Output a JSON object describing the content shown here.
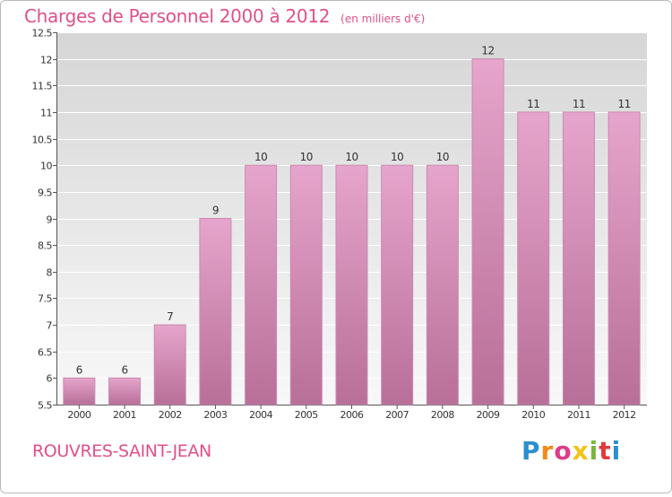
{
  "header": {
    "title": "Charges de Personnel 2000 à 2012",
    "subtitle": "(en milliers d'€)"
  },
  "footer": {
    "commune": "ROUVRES-SAINT-JEAN",
    "brand_letters": [
      "P",
      "r",
      "o",
      "x",
      "i",
      "t",
      "i"
    ],
    "brand_colors": [
      "#2b8fd0",
      "#f08a1c",
      "#e03a8a",
      "#f0c419",
      "#7cb342",
      "#e03a3a",
      "#2b8fd0"
    ]
  },
  "colors": {
    "accent": "#e0508a",
    "bar_top": "#e6a5cc",
    "bar_bottom": "#b86f98",
    "bar_edge": "#c98ab0",
    "plot_bg_top": "#d6d6d6",
    "plot_bg_bottom": "#f8f8f8"
  },
  "chart_data": {
    "type": "bar",
    "categories": [
      "2000",
      "2001",
      "2002",
      "2003",
      "2004",
      "2005",
      "2006",
      "2007",
      "2008",
      "2009",
      "2010",
      "2011",
      "2012"
    ],
    "values": [
      6,
      6,
      7,
      9,
      10,
      10,
      10,
      10,
      10,
      12,
      11,
      11,
      11
    ],
    "value_labels": [
      "6",
      "6",
      "7",
      "9",
      "10",
      "10",
      "10",
      "10",
      "10",
      "12",
      "11",
      "11",
      "11"
    ],
    "ylim": [
      5.5,
      12.5
    ],
    "yticks": [
      5.5,
      6,
      6.5,
      7,
      7.5,
      8,
      8.5,
      9,
      9.5,
      10,
      10.5,
      11,
      11.5,
      12,
      12.5
    ],
    "ytick_labels": [
      "5.5",
      "6",
      "6.5",
      "7",
      "7.5",
      "8",
      "8.5",
      "9",
      "9.5",
      "10",
      "10.5",
      "11",
      "11.5",
      "12",
      "12.5"
    ],
    "grid": true
  }
}
